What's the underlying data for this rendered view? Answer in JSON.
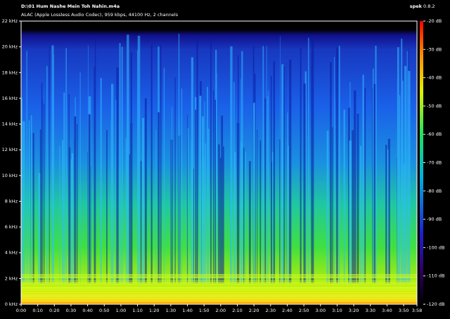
{
  "chart_data": {
    "type": "spectrogram",
    "title": "D:\\01 Hum Nashe Mein Toh Nahin.m4a",
    "subtitle": "ALAC (Apple Lossless Audio Codec), 959 kbps, 44100 Hz, 2 channels",
    "app_name": "spek",
    "app_version": "0.8.2",
    "xlim": [
      0,
      238
    ],
    "xticks": [
      {
        "value": 0,
        "label": "0:00"
      },
      {
        "value": 10,
        "label": "0:10"
      },
      {
        "value": 20,
        "label": "0:20"
      },
      {
        "value": 30,
        "label": "0:30"
      },
      {
        "value": 40,
        "label": "0:40"
      },
      {
        "value": 50,
        "label": "0:50"
      },
      {
        "value": 60,
        "label": "1:00"
      },
      {
        "value": 70,
        "label": "1:10"
      },
      {
        "value": 80,
        "label": "1:20"
      },
      {
        "value": 90,
        "label": "1:30"
      },
      {
        "value": 100,
        "label": "1:40"
      },
      {
        "value": 110,
        "label": "1:50"
      },
      {
        "value": 120,
        "label": "2:00"
      },
      {
        "value": 130,
        "label": "2:10"
      },
      {
        "value": 140,
        "label": "2:20"
      },
      {
        "value": 150,
        "label": "2:30"
      },
      {
        "value": 160,
        "label": "2:40"
      },
      {
        "value": 170,
        "label": "2:50"
      },
      {
        "value": 180,
        "label": "3:00"
      },
      {
        "value": 190,
        "label": "3:10"
      },
      {
        "value": 200,
        "label": "3:20"
      },
      {
        "value": 210,
        "label": "3:30"
      },
      {
        "value": 220,
        "label": "3:40"
      },
      {
        "value": 230,
        "label": "3:50"
      },
      {
        "value": 238,
        "label": "3:58"
      }
    ],
    "ylim": [
      0,
      22
    ],
    "yticks": [
      {
        "value": 0,
        "label": "0 kHz"
      },
      {
        "value": 2,
        "label": "2 kHz"
      },
      {
        "value": 4,
        "label": "4 kHz"
      },
      {
        "value": 6,
        "label": "6 kHz"
      },
      {
        "value": 8,
        "label": "8 kHz"
      },
      {
        "value": 10,
        "label": "10 kHz"
      },
      {
        "value": 12,
        "label": "12 kHz"
      },
      {
        "value": 14,
        "label": "14 kHz"
      },
      {
        "value": 16,
        "label": "16 kHz"
      },
      {
        "value": 18,
        "label": "18 kHz"
      },
      {
        "value": 20,
        "label": "20 kHz"
      },
      {
        "value": 22,
        "label": "22 kHz"
      }
    ],
    "clim": [
      -120,
      -20
    ],
    "cticks": [
      {
        "value": -20,
        "label": "-20 dB"
      },
      {
        "value": -30,
        "label": "-30 dB"
      },
      {
        "value": -40,
        "label": "-40 dB"
      },
      {
        "value": -50,
        "label": "-50 dB"
      },
      {
        "value": -60,
        "label": "-60 dB"
      },
      {
        "value": -70,
        "label": "-70 dB"
      },
      {
        "value": -80,
        "label": "-80 dB"
      },
      {
        "value": -90,
        "label": "-90 dB"
      },
      {
        "value": -100,
        "label": "-100 dB"
      },
      {
        "value": -110,
        "label": "-110 dB"
      },
      {
        "value": -120,
        "label": "-120 dB"
      }
    ]
  }
}
